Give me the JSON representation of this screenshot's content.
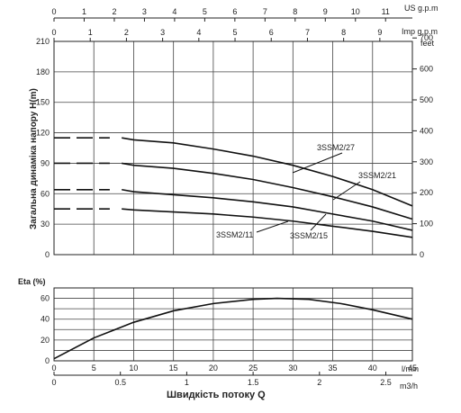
{
  "chart_data": [
    {
      "type": "line",
      "name": "head-chart",
      "ylabel": "Загальна динаміка напору H(m)",
      "y_left": {
        "unit": "",
        "ticks": [
          0,
          30,
          60,
          90,
          120,
          150,
          180,
          210
        ],
        "range": [
          0,
          210
        ]
      },
      "y_right": {
        "unit": "feet",
        "ticks": [
          0,
          100,
          200,
          300,
          400,
          500,
          600,
          700
        ],
        "range": [
          0,
          700
        ]
      },
      "x_top_us": {
        "unit": "US g.p.m",
        "ticks": [
          0,
          1,
          2,
          3,
          4,
          5,
          6,
          7,
          8,
          9,
          10,
          11
        ]
      },
      "x_top_imp": {
        "unit": "Imp g.p.m",
        "ticks": [
          0,
          1,
          2,
          3,
          4,
          5,
          6,
          7,
          8,
          9
        ]
      },
      "x_range_lmin": [
        0,
        45
      ],
      "grid": true,
      "series": [
        {
          "name": "3SSM2/27",
          "color": "#111111",
          "dashed_x": [
            0,
            7
          ],
          "dashed_y": [
            115,
            115
          ],
          "x": [
            10,
            15,
            20,
            25,
            30,
            35,
            40,
            45
          ],
          "y": [
            113,
            110,
            104,
            97,
            88,
            77,
            64,
            48
          ]
        },
        {
          "name": "3SSM2/21",
          "color": "#111111",
          "dashed_x": [
            0,
            7
          ],
          "dashed_y": [
            90,
            90
          ],
          "x": [
            10,
            15,
            20,
            25,
            30,
            35,
            40,
            45
          ],
          "y": [
            88,
            85,
            80,
            74,
            66,
            57,
            47,
            35
          ]
        },
        {
          "name": "3SSM2/15",
          "color": "#111111",
          "dashed_x": [
            0,
            7
          ],
          "dashed_y": [
            64,
            64
          ],
          "x": [
            10,
            15,
            20,
            25,
            30,
            35,
            40,
            45
          ],
          "y": [
            62,
            59,
            56,
            52,
            47,
            40,
            33,
            24
          ]
        },
        {
          "name": "3SSM2/11",
          "color": "#111111",
          "dashed_x": [
            0,
            7
          ],
          "dashed_y": [
            45,
            45
          ],
          "x": [
            10,
            15,
            20,
            25,
            30,
            35,
            40,
            45
          ],
          "y": [
            44,
            42,
            40,
            37,
            33,
            28,
            23,
            17
          ]
        }
      ],
      "labels": [
        {
          "text": "3SSM2/27",
          "series": "3SSM2/27"
        },
        {
          "text": "3SSM2/21",
          "series": "3SSM2/21"
        },
        {
          "text": "3SSM2/15",
          "series": "3SSM2/15"
        },
        {
          "text": "3SSM2/11",
          "series": "3SSM2/11"
        }
      ]
    },
    {
      "type": "line",
      "name": "efficiency-chart",
      "ylabel": "Eta (%)",
      "y_left": {
        "ticks": [
          0,
          20,
          40,
          60
        ],
        "range": [
          0,
          70
        ]
      },
      "x_lmin": {
        "unit": "l/min",
        "ticks": [
          0,
          5,
          10,
          15,
          20,
          25,
          30,
          35,
          40,
          45
        ],
        "range": [
          0,
          45
        ]
      },
      "x_m3h": {
        "unit": "m3/h",
        "ticks": [
          "0",
          "0.5",
          "1",
          "1.5",
          "2",
          "2.5"
        ],
        "values": [
          0,
          0.5,
          1,
          1.5,
          2,
          2.5
        ]
      },
      "xlabel": "Швидкість потоку Q",
      "grid": true,
      "series": [
        {
          "name": "",
          "color": "#111111",
          "x": [
            0,
            5,
            10,
            15,
            20,
            25,
            28,
            32,
            36,
            40,
            45
          ],
          "y": [
            2,
            22,
            37,
            48,
            55,
            59,
            60,
            59,
            55,
            49,
            40
          ]
        }
      ]
    }
  ]
}
